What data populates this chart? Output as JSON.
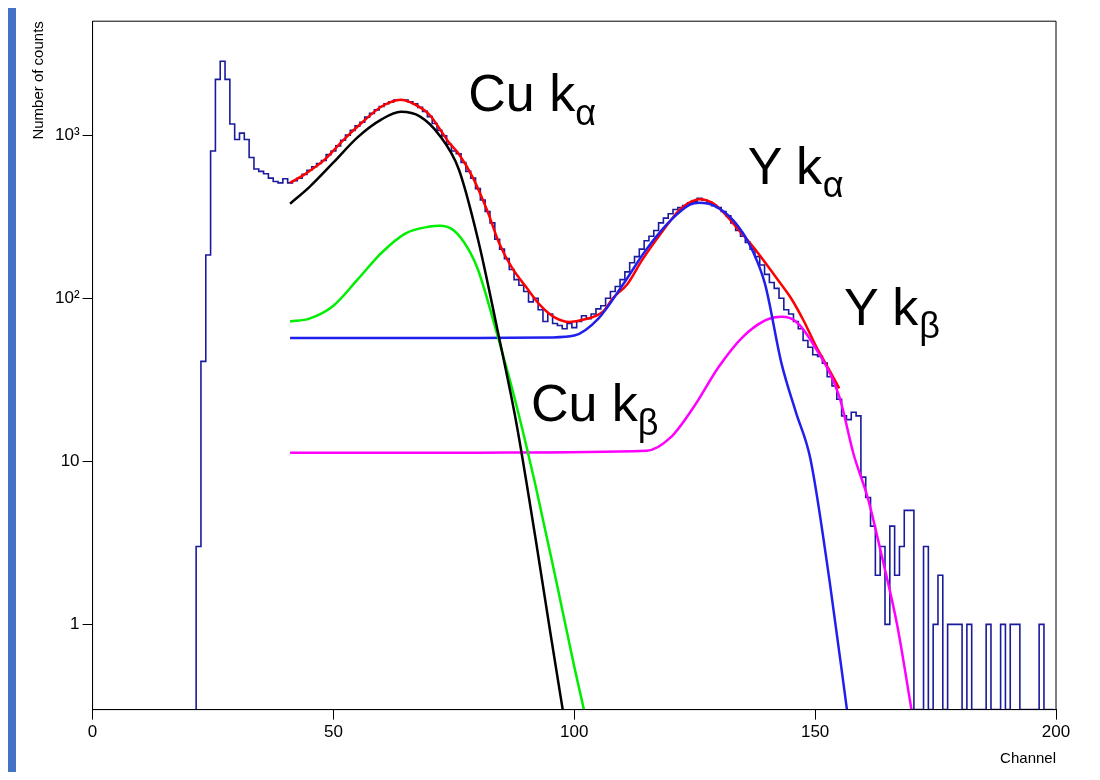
{
  "chart_data": {
    "type": "line",
    "xlabel": "Channel",
    "ylabel": "Number of counts",
    "log": "y",
    "xlim": [
      0,
      200
    ],
    "xticks": [
      0,
      50,
      100,
      150,
      200
    ],
    "ylim": [
      0.3,
      5000
    ],
    "yticks": [
      1,
      10,
      {
        "value": 100,
        "label": "10²"
      },
      {
        "value": 1000,
        "label": "10³"
      }
    ],
    "series": [
      {
        "type": "histogram",
        "color": "#1a1a9c",
        "bins": [
          21.5,
          22.5,
          23.5,
          24.5,
          25.5,
          26.5,
          27.5,
          28.5,
          29.5,
          30.5,
          31.5,
          32.5,
          33.5,
          34.5,
          35.5,
          36.5,
          37.5,
          38.5,
          39.5,
          40.5,
          41.5,
          42.5,
          43.5,
          44.5,
          45.5,
          46.5,
          47.5,
          48.5,
          49.5,
          50.5,
          51.5,
          52.5,
          53.5,
          54.5,
          55.5,
          56.5,
          57.5,
          58.5,
          59.5,
          60.5,
          61.5,
          62.5,
          63.5,
          64.5,
          65.5,
          66.5,
          67.5,
          68.5,
          69.5,
          70.5,
          71.5,
          72.5,
          73.5,
          74.5,
          75.5,
          76.5,
          77.5,
          78.5,
          79.5,
          80.5,
          81.5,
          82.5,
          83.5,
          84.5,
          85.5,
          86.5,
          87.5,
          88.5,
          89.5,
          90.5,
          91.5,
          92.5,
          93.5,
          94.5,
          95.5,
          96.5,
          97.5,
          98.5,
          99.5,
          100.5,
          101.5,
          102.5,
          103.5,
          104.5,
          105.5,
          106.5,
          107.5,
          108.5,
          109.5,
          110.5,
          111.5,
          112.5,
          113.5,
          114.5,
          115.5,
          116.5,
          117.5,
          118.5,
          119.5,
          120.5,
          121.5,
          122.5,
          123.5,
          124.5,
          125.5,
          126.5,
          127.5,
          128.5,
          129.5,
          130.5,
          131.5,
          132.5,
          133.5,
          134.5,
          135.5,
          136.5,
          137.5,
          138.5,
          139.5,
          140.5,
          141.5,
          142.5,
          143.5,
          144.5,
          145.5,
          146.5,
          147.5,
          148.5,
          149.5,
          150.5,
          151.5,
          152.5,
          153.5,
          154.5,
          155.5,
          156.5,
          157.5,
          158.5,
          159.5,
          160.5,
          161.5,
          162.5,
          163.5,
          164.5,
          165.5,
          166.5,
          167.5,
          168.5,
          169.5,
          170.5,
          171.5,
          172.5,
          173.5,
          174.5,
          175.5,
          176.5,
          177.5,
          178.5,
          179.5,
          180.5,
          181.5,
          182.5,
          183.5,
          184.5,
          185.5,
          186.5,
          187.5,
          188.5,
          189.5,
          190.5,
          191.5,
          192.5,
          193.5,
          194.5,
          195.5,
          196.5,
          197.5,
          198.5,
          199.5
        ],
        "values": [
          3,
          41,
          184,
          800,
          2200,
          2840,
          2200,
          1170,
          940,
          1030,
          940,
          730,
          620,
          600,
          580,
          545,
          520,
          510,
          540,
          510,
          525,
          545,
          575,
          610,
          640,
          670,
          700,
          760,
          800,
          860,
          930,
          1000,
          1070,
          1140,
          1200,
          1290,
          1360,
          1430,
          1500,
          1560,
          1600,
          1640,
          1650,
          1640,
          1600,
          1560,
          1480,
          1400,
          1300,
          1180,
          1070,
          990,
          880,
          800,
          770,
          680,
          600,
          545,
          470,
          400,
          340,
          290,
          230,
          200,
          175,
          150,
          130,
          120,
          110,
          95,
          100,
          85,
          72,
          80,
          70,
          68,
          65,
          70,
          66,
          72,
          78,
          75,
          80,
          86,
          90,
          100,
          110,
          118,
          130,
          145,
          165,
          180,
          200,
          225,
          240,
          260,
          290,
          310,
          330,
          350,
          360,
          370,
          385,
          390,
          410,
          400,
          390,
          370,
          360,
          340,
          320,
          290,
          260,
          240,
          220,
          200,
          180,
          160,
          140,
          125,
          115,
          100,
          85,
          80,
          72,
          65,
          55,
          50,
          45,
          44,
          40,
          33,
          29,
          24,
          19,
          18,
          20,
          19,
          8,
          6,
          4,
          2,
          3,
          1,
          4,
          2,
          3,
          5,
          5,
          null,
          null,
          3,
          null,
          1,
          2,
          null,
          1,
          1,
          1,
          null,
          1,
          null,
          null,
          null,
          1,
          null,
          null,
          1,
          null,
          1,
          1,
          null,
          null,
          null,
          null,
          1,
          null,
          null
        ]
      },
      {
        "type": "line",
        "color": "#000000",
        "x": [
          41,
          45,
          50,
          55,
          60,
          64,
          68,
          72,
          76,
          80,
          84,
          88,
          92,
          95,
          97.6
        ],
        "values": [
          380,
          480,
          680,
          970,
          1250,
          1390,
          1300,
          1000,
          620,
          230,
          65,
          17,
          3.3,
          0.9,
          0.3
        ]
      },
      {
        "type": "line",
        "color": "#00ee00",
        "x": [
          41,
          45,
          50,
          55,
          60,
          65,
          70,
          72,
          75,
          78,
          80,
          84,
          88,
          92,
          96,
          100,
          102
        ],
        "values": [
          72,
          75,
          90,
          130,
          190,
          250,
          275,
          278,
          260,
          200,
          150,
          60,
          22,
          7,
          2,
          0.55,
          0.3
        ]
      },
      {
        "type": "line",
        "color": "#1f1fee",
        "x": [
          41,
          60,
          80,
          95,
          100,
          105,
          110,
          115,
          120,
          124,
          126,
          129,
          133,
          136.5,
          139.6,
          143,
          146,
          149,
          153,
          156.6
        ],
        "values": [
          57,
          57,
          57,
          57.5,
          59,
          75,
          120,
          200,
          300,
          375,
          385,
          370,
          300,
          210,
          122,
          40,
          20,
          10.4,
          1.84,
          0.3
        ]
      },
      {
        "type": "line",
        "color": "#ff00ff",
        "x": [
          41,
          80,
          115,
          120,
          125,
          130,
          135,
          140,
          143,
          146,
          150,
          155,
          158,
          161,
          164,
          167,
          170
        ],
        "values": [
          11.3,
          11.3,
          11.6,
          14,
          22,
          38,
          58,
          74,
          77,
          72,
          50,
          25,
          11,
          5.85,
          2.5,
          1,
          0.3
        ]
      },
      {
        "type": "line",
        "color": "#ff0000",
        "x": [
          41,
          44,
          48,
          52,
          56,
          60,
          64,
          68,
          70,
          72,
          74,
          76,
          79,
          82,
          84.4,
          87,
          90,
          93,
          96,
          99,
          102,
          106,
          108,
          111,
          114,
          117,
          120,
          122,
          126,
          129,
          131.5,
          134,
          137,
          140,
          142.4,
          145,
          147.7,
          150,
          153,
          155
        ],
        "values": [
          510,
          575,
          700,
          930,
          1200,
          1500,
          1650,
          1480,
          1330,
          1100,
          900,
          770,
          545,
          340,
          218,
          155,
          117,
          90,
          76,
          71.5,
          74,
          83,
          100,
          122,
          170,
          228,
          300,
          352,
          405,
          380,
          323,
          265,
          209,
          160,
          128,
          100,
          72,
          52,
          36,
          28
        ]
      }
    ],
    "annotations": [
      "Cu k$_{α}$",
      "Y k$_{α}$",
      "Y k$_{β}$",
      "Cu k$_{β}$"
    ]
  }
}
